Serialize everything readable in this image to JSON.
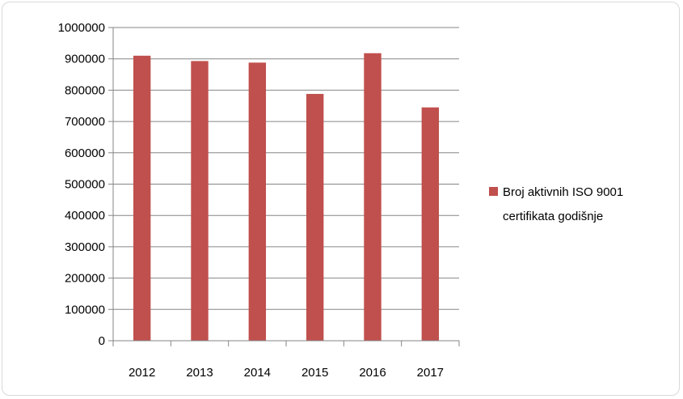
{
  "chart_data": {
    "type": "bar",
    "categories": [
      "2012",
      "2013",
      "2014",
      "2015",
      "2016",
      "2017"
    ],
    "series": [
      {
        "name": "Broj aktivnih ISO 9001 certifikata godišnje",
        "values": [
          910000,
          893000,
          888000,
          788000,
          918000,
          745000
        ]
      }
    ],
    "ylim": [
      0,
      1000000
    ],
    "yticks": [
      "0",
      "100000",
      "200000",
      "300000",
      "400000",
      "500000",
      "600000",
      "700000",
      "800000",
      "900000",
      "1000000"
    ],
    "grid": true,
    "legend_position": "right",
    "legend_lines": [
      "Broj aktivnih ISO 9001",
      "certifikata godišnje"
    ],
    "colors": {
      "bar": "#c0504d",
      "grid": "#868686",
      "axis": "#868686"
    }
  }
}
